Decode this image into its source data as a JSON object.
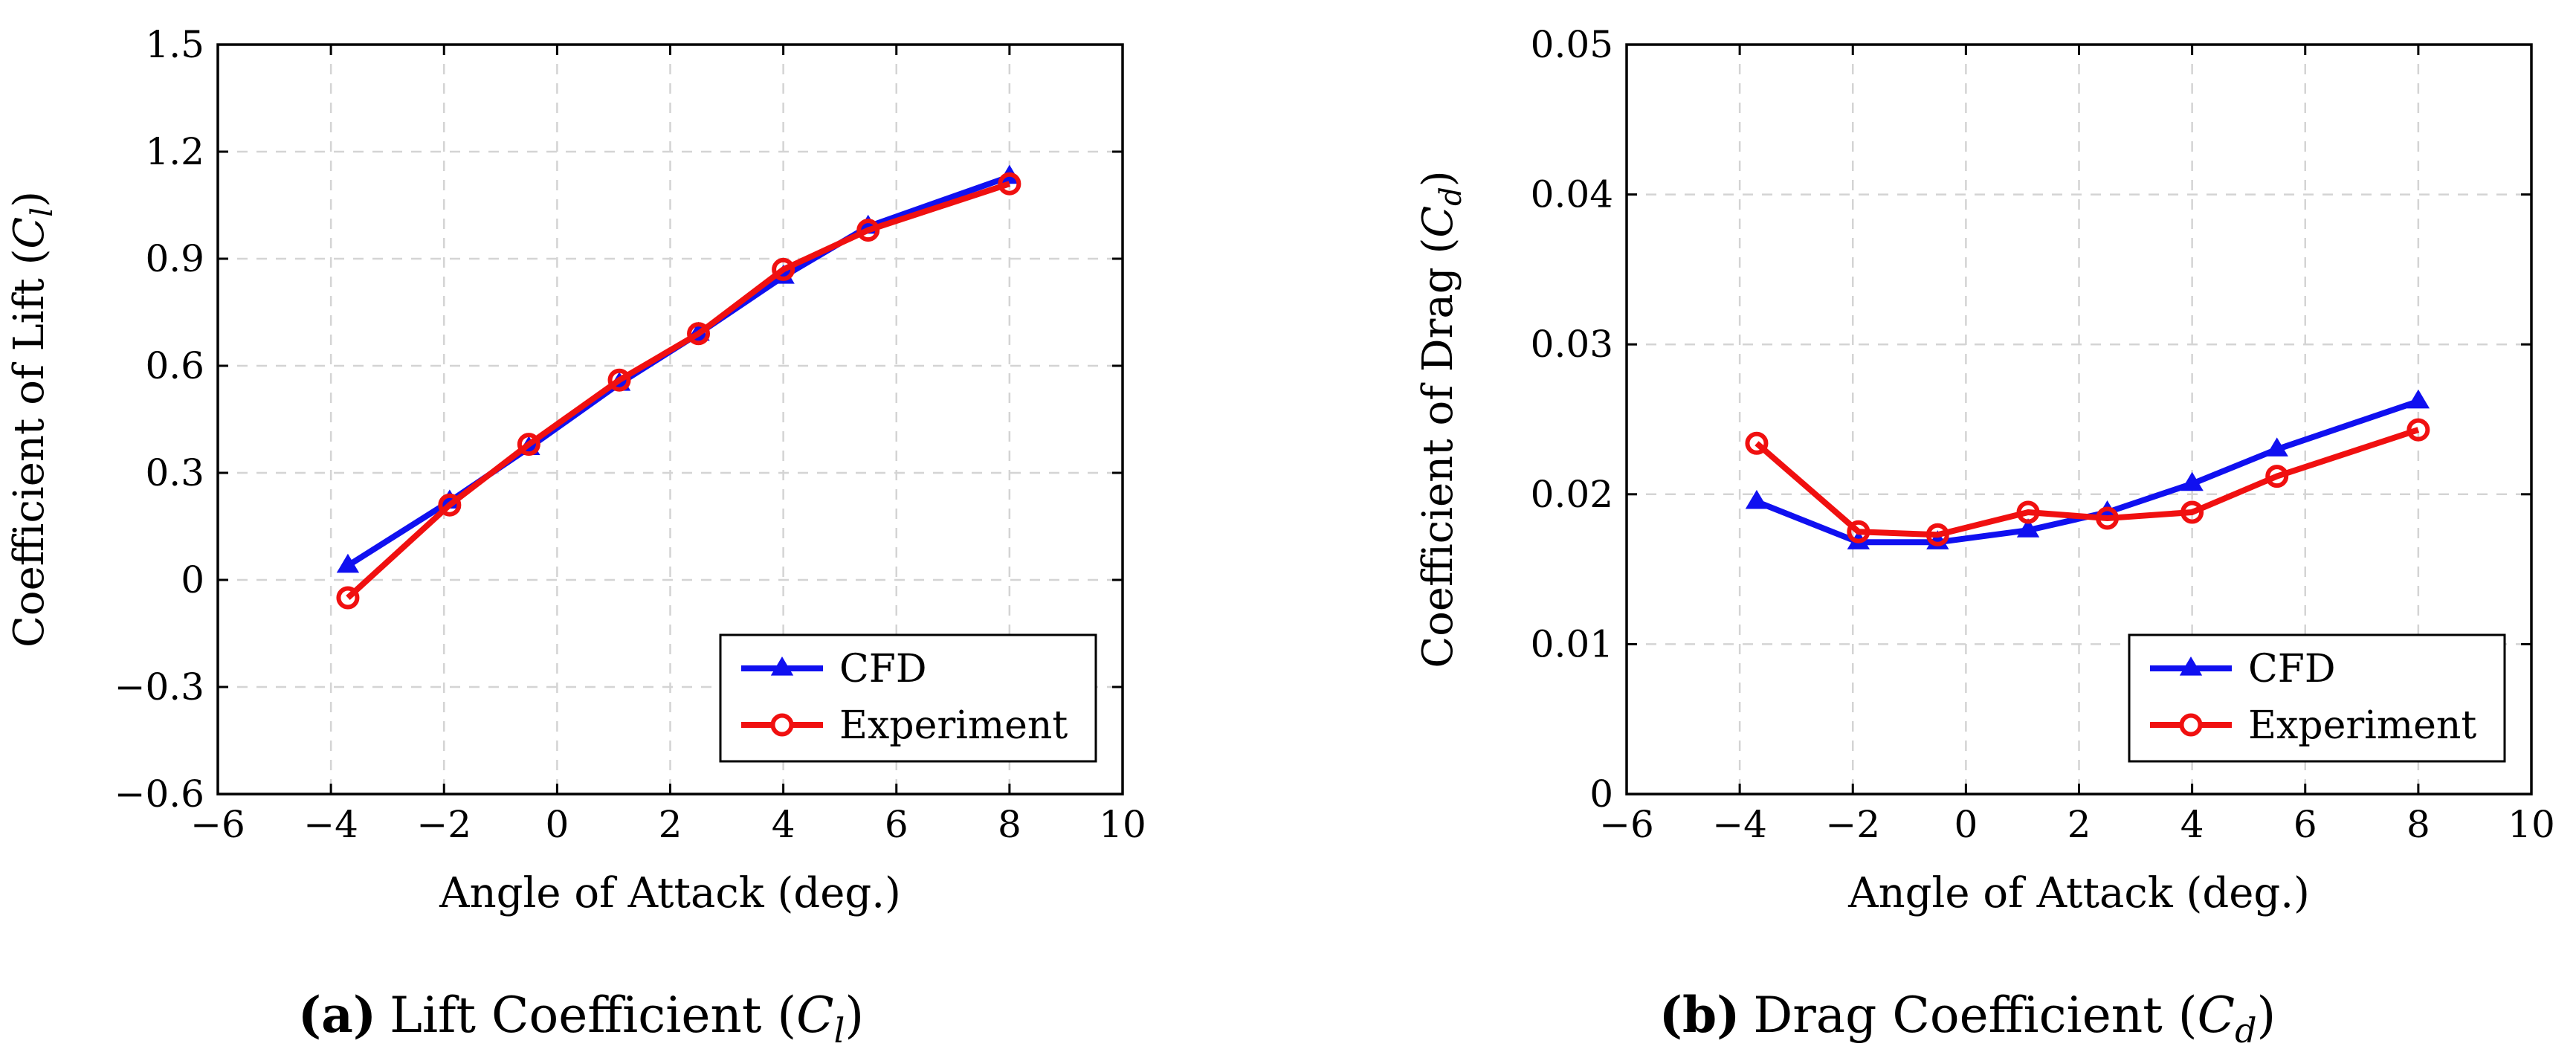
{
  "colors": {
    "cfd": "#1010f0",
    "experiment": "#f01010"
  },
  "chart_data": [
    {
      "type": "line",
      "caption_letter": "(a)",
      "caption_text": "Lift Coefficient (",
      "caption_sym": "C",
      "caption_sub": "l",
      "caption_close": ")",
      "xlabel": "Angle of Attack (deg.)",
      "ylabel_prefix": "Coefficient of Lift (",
      "ylabel_sym": "C",
      "ylabel_sub": "l",
      "ylabel_close": ")",
      "xlim": [
        -6,
        10
      ],
      "ylim": [
        -0.6,
        1.5
      ],
      "xticks": [
        -6,
        -4,
        -2,
        0,
        2,
        4,
        6,
        8,
        10
      ],
      "xtick_labels": [
        "−6",
        "−4",
        "−2",
        "0",
        "2",
        "4",
        "6",
        "8",
        "10"
      ],
      "yticks": [
        -0.6,
        -0.3,
        0,
        0.3,
        0.6,
        0.9,
        1.2,
        1.5
      ],
      "ytick_labels": [
        "−0.6",
        "−0.3",
        "0",
        "0.3",
        "0.6",
        "0.9",
        "1.2",
        "1.5"
      ],
      "grid": true,
      "legend_position": "bottom-right",
      "series": [
        {
          "name": "CFD",
          "marker": "triangle",
          "color_key": "cfd",
          "points": [
            [
              -3.7,
              0.04
            ],
            [
              -1.9,
              0.22
            ],
            [
              -0.5,
              0.37
            ],
            [
              1.1,
              0.55
            ],
            [
              2.5,
              0.69
            ],
            [
              4.0,
              0.85
            ],
            [
              5.5,
              0.99
            ],
            [
              8.0,
              1.13
            ]
          ]
        },
        {
          "name": "Experiment",
          "marker": "circle",
          "color_key": "experiment",
          "points": [
            [
              -3.7,
              -0.05
            ],
            [
              -1.9,
              0.21
            ],
            [
              -0.5,
              0.38
            ],
            [
              1.1,
              0.56
            ],
            [
              2.5,
              0.69
            ],
            [
              4.0,
              0.87
            ],
            [
              5.5,
              0.98
            ],
            [
              8.0,
              1.11
            ]
          ]
        }
      ]
    },
    {
      "type": "line",
      "caption_letter": "(b)",
      "caption_text": "Drag Coefficient (",
      "caption_sym": "C",
      "caption_sub": "d",
      "caption_close": ")",
      "xlabel": "Angle of Attack (deg.)",
      "ylabel_prefix": "Coefficient of Drag (",
      "ylabel_sym": "C",
      "ylabel_sub": "d",
      "ylabel_close": ")",
      "xlim": [
        -6,
        10
      ],
      "ylim": [
        0,
        0.05
      ],
      "xticks": [
        -6,
        -4,
        -2,
        0,
        2,
        4,
        6,
        8,
        10
      ],
      "xtick_labels": [
        "−6",
        "−4",
        "−2",
        "0",
        "2",
        "4",
        "6",
        "8",
        "10"
      ],
      "yticks": [
        0,
        0.01,
        0.02,
        0.03,
        0.04,
        0.05
      ],
      "ytick_labels": [
        "0",
        "0.01",
        "0.02",
        "0.03",
        "0.04",
        "0.05"
      ],
      "grid": true,
      "legend_position": "bottom-right",
      "series": [
        {
          "name": "CFD",
          "marker": "triangle",
          "color_key": "cfd",
          "points": [
            [
              -3.7,
              0.0195
            ],
            [
              -1.9,
              0.0168
            ],
            [
              -0.5,
              0.0168
            ],
            [
              1.1,
              0.0176
            ],
            [
              2.5,
              0.0188
            ],
            [
              4.0,
              0.0207
            ],
            [
              5.5,
              0.023
            ],
            [
              8.0,
              0.0262
            ]
          ]
        },
        {
          "name": "Experiment",
          "marker": "circle",
          "color_key": "experiment",
          "points": [
            [
              -3.7,
              0.0234
            ],
            [
              -1.9,
              0.0175
            ],
            [
              -0.5,
              0.0173
            ],
            [
              1.1,
              0.0188
            ],
            [
              2.5,
              0.0184
            ],
            [
              4.0,
              0.0188
            ],
            [
              5.5,
              0.0212
            ],
            [
              8.0,
              0.0243
            ]
          ]
        }
      ]
    }
  ]
}
